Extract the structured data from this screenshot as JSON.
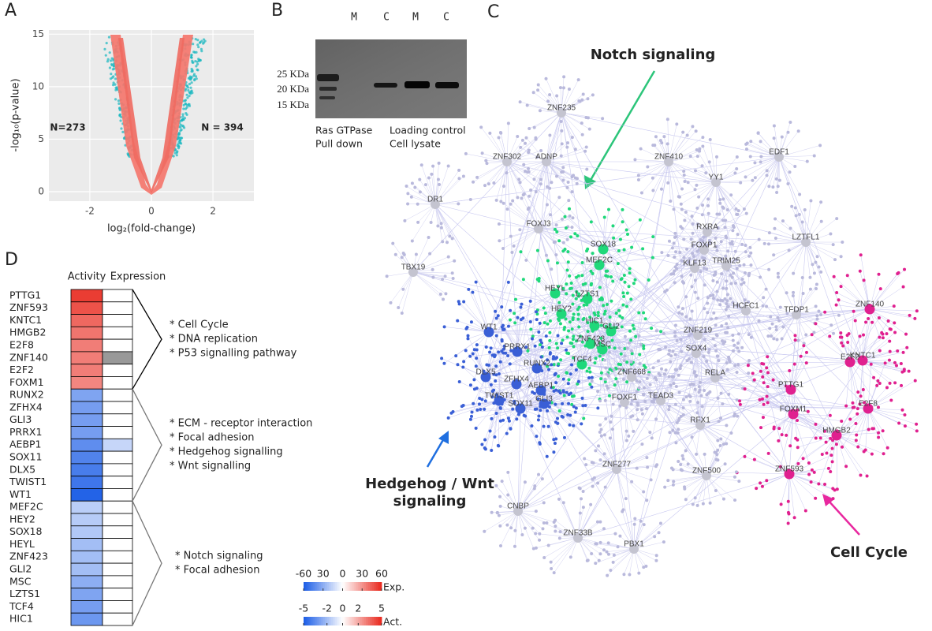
{
  "panel_labels": [
    "A",
    "B",
    "C",
    "D"
  ],
  "chart_data": [
    {
      "type": "volcano",
      "xlabel": "log₂(fold-change)",
      "ylabel": "-log₁₀(p-value)",
      "xlim": [
        -3.33,
        3.33
      ],
      "ylim": [
        -0.9,
        15.4
      ],
      "xticks": [
        -2,
        0,
        2
      ],
      "yticks": [
        0,
        5,
        10,
        15
      ],
      "grid": true,
      "colors": {
        "background": "#ebebeb",
        "not_significant": "#f4766d",
        "significant": "#19b8c0"
      },
      "annotations": [
        {
          "text": "N=273",
          "side": "left"
        },
        {
          "text": "N = 394",
          "side": "right"
        }
      ]
    },
    {
      "type": "heatmap",
      "rows": [
        "PTTG1",
        "ZNF593",
        "KNTC1",
        "HMGB2",
        "E2F8",
        "ZNF140",
        "E2F2",
        "FOXM1",
        "RUNX2",
        "ZFHX4",
        "GLI3",
        "PRRX1",
        "AEBP1",
        "SOX11",
        "DLX5",
        "TWIST1",
        "WT1",
        "MEF2C",
        "HEY2",
        "SOX18",
        "HEYL",
        "ZNF423",
        "GLI2",
        "MSC",
        "LZTS1",
        "TCF4",
        "HIC1"
      ],
      "series": [
        {
          "name": "Activity",
          "values": [
            4.5,
            4,
            3.5,
            3.2,
            3,
            3,
            3,
            2.8,
            -2.8,
            -3,
            -3,
            -3,
            -3.5,
            -3.8,
            -4,
            -4.2,
            -4.8,
            -1.5,
            -1.6,
            -1.7,
            -2,
            -2,
            -2,
            -2.5,
            -2.8,
            -3,
            -3.2
          ],
          "scale": {
            "label": "Act.",
            "lim": [
              -5,
              5
            ],
            "ticks": [
              -5,
              -2,
              0,
              2,
              5
            ]
          }
        },
        {
          "name": "Expression",
          "values": [
            0,
            0,
            0,
            0,
            0,
            null,
            0,
            0,
            0,
            0,
            0,
            0,
            -15,
            0,
            0,
            0,
            0,
            0,
            0,
            0,
            0,
            0,
            0,
            0,
            0,
            0,
            0
          ],
          "scale": {
            "label": "Exp.",
            "lim": [
              -60,
              60
            ],
            "ticks": [
              -60,
              {
                "value": -30,
                "label": "30"
              },
              0,
              30,
              60
            ]
          }
        }
      ],
      "colors": {
        "low": "#1a5ce6",
        "mid": "#ffffff",
        "high": "#e8271c",
        "missing": "#999999"
      },
      "groups": [
        {
          "terms": [
            "* Cell Cycle",
            "* DNA replication",
            "* P53 signalling pathway"
          ]
        },
        {
          "terms": [
            "* ECM - receptor interaction",
            "* Focal adhesion",
            "* Hedgehog signalling",
            "* Wnt signalling"
          ]
        },
        {
          "terms": [
            "* Notch signaling",
            "* Focal adhesion"
          ]
        }
      ]
    }
  ],
  "blot": {
    "lanes": [
      "M",
      "C",
      "M",
      "C"
    ],
    "markers": [
      "25 KDa",
      "20 KDa",
      "15 KDa"
    ],
    "captions": [
      [
        "Ras GTPase",
        "Pull down"
      ],
      [
        "Loading control",
        "Cell lysate"
      ]
    ]
  },
  "network": {
    "modules": [
      {
        "lines": [
          "Notch signaling"
        ],
        "color": "#2cc57a"
      },
      {
        "lines": [
          "Hedgehog / Wnt",
          "signaling"
        ],
        "color": "#1f6fe0"
      },
      {
        "lines": [
          "Cell Cycle"
        ],
        "color": "#e8289f"
      }
    ],
    "nodes": [
      {
        "label": "ZNF235",
        "color": "#c4c4d0"
      },
      {
        "label": "ZNF302",
        "color": "#c4c4d0"
      },
      {
        "label": "ADNP",
        "color": "#c4c4d0"
      },
      {
        "label": "ZNF410",
        "color": "#c4c4d0"
      },
      {
        "label": "YY1",
        "color": "#c4c4d0"
      },
      {
        "label": "EDF1",
        "color": "#c4c4d0"
      },
      {
        "label": "DR1",
        "color": "#c4c4d0"
      },
      {
        "label": "FOXJ3",
        "color": "#c4c4d0"
      },
      {
        "label": "SOX18",
        "color": "#1fd87a"
      },
      {
        "label": "MEF2C",
        "color": "#1fd87a"
      },
      {
        "label": "RXRA",
        "color": "#c4c4d0"
      },
      {
        "label": "LZTFL1",
        "color": "#c4c4d0"
      },
      {
        "label": "TBX19",
        "color": "#c4c4d0"
      },
      {
        "label": "FOXP1",
        "color": "#c4c4d0"
      },
      {
        "label": "TRIM25",
        "color": "#c4c4d0"
      },
      {
        "label": "KLF13",
        "color": "#c4c4d0"
      },
      {
        "label": "HEYL",
        "color": "#1fd87a"
      },
      {
        "label": "LZTS1",
        "color": "#1fd87a"
      },
      {
        "label": "ZNF140",
        "color": "#e0208f"
      },
      {
        "label": "HEY2",
        "color": "#1fd87a"
      },
      {
        "label": "HCFC1",
        "color": "#c4c4d0"
      },
      {
        "label": "TFDP1",
        "color": "#c4c4d0"
      },
      {
        "label": "HIC1",
        "color": "#1fd87a"
      },
      {
        "label": "GLI2",
        "color": "#1fd87a"
      },
      {
        "label": "WT1",
        "color": "#3a5fd6"
      },
      {
        "label": "ZNF219",
        "color": "#c4c4d0"
      },
      {
        "label": "ZNF423",
        "color": "#1fd87a"
      },
      {
        "label": "MSC",
        "color": "#1fd87a"
      },
      {
        "label": "PRRX1",
        "color": "#3a5fd6"
      },
      {
        "label": "SOX4",
        "color": "#c4c4d0"
      },
      {
        "label": "KNTC1",
        "color": "#e0208f"
      },
      {
        "label": "RUNX2",
        "color": "#3a5fd6"
      },
      {
        "label": "E2F2",
        "color": "#e0208f"
      },
      {
        "label": "TCF4",
        "color": "#1fd87a"
      },
      {
        "label": "ZNF668",
        "color": "#c4c4d0"
      },
      {
        "label": "DLX5",
        "color": "#3a5fd6"
      },
      {
        "label": "ZFHX4",
        "color": "#3a5fd6"
      },
      {
        "label": "AEBP1",
        "color": "#3a5fd6"
      },
      {
        "label": "RELA",
        "color": "#c4c4d0"
      },
      {
        "label": "PTTG1",
        "color": "#e0208f"
      },
      {
        "label": "TWIST1",
        "color": "#3a5fd6"
      },
      {
        "label": "GLI3",
        "color": "#3a5fd6"
      },
      {
        "label": "TEAD3",
        "color": "#c4c4d0"
      },
      {
        "label": "FOXF1",
        "color": "#c4c4d0"
      },
      {
        "label": "SOX11",
        "color": "#3a5fd6"
      },
      {
        "label": "E2F8",
        "color": "#e0208f"
      },
      {
        "label": "FOXM1",
        "color": "#e0208f"
      },
      {
        "label": "HMGB2",
        "color": "#e0208f"
      },
      {
        "label": "RFX1",
        "color": "#c4c4d0"
      },
      {
        "label": "ZNF593",
        "color": "#e0208f"
      },
      {
        "label": "ZNF500",
        "color": "#c4c4d0"
      },
      {
        "label": "ZNF277",
        "color": "#c4c4d0"
      },
      {
        "label": "CNBP",
        "color": "#c4c4d0"
      },
      {
        "label": "ZNF33B",
        "color": "#c4c4d0"
      },
      {
        "label": "PBX1",
        "color": "#c4c4d0"
      }
    ]
  }
}
